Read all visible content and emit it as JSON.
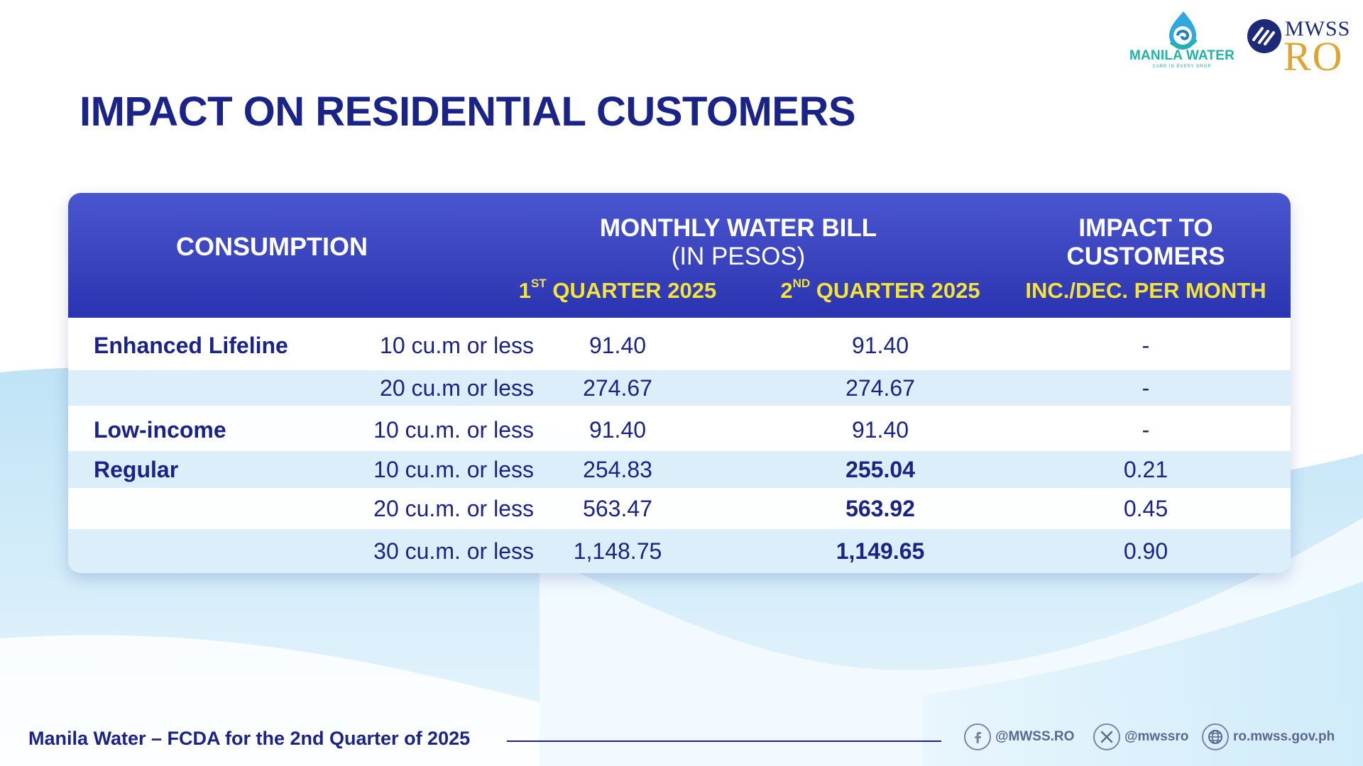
{
  "title": "IMPACT ON RESIDENTIAL CUSTOMERS",
  "logos": {
    "manila_water": "MANILA WATER",
    "manila_water_tagline": "CARE IN EVERY DROP",
    "mwss": "MWSS",
    "ro": "RO"
  },
  "table": {
    "header": {
      "consumption": "CONSUMPTION",
      "bill_line1": "MONTHLY WATER BILL",
      "bill_line2": "(IN PESOS)",
      "impact_line1": "IMPACT TO",
      "impact_line2": "CUSTOMERS",
      "q1_num": "1",
      "q1_sup": "ST",
      "q1_rest": " QUARTER 2025",
      "q2_num": "2",
      "q2_sup": "ND",
      "q2_rest": " QUARTER 2025",
      "inc_dec": "INC./DEC. PER MONTH"
    },
    "rows": [
      {
        "category": "Enhanced Lifeline",
        "size": "10 cu.m or less",
        "q1": "91.40",
        "q2": "91.40",
        "impact": "-"
      },
      {
        "category": "",
        "size": "20 cu.m or less",
        "q1": "274.67",
        "q2": "274.67",
        "impact": "-"
      },
      {
        "category": "Low-income",
        "size": "10 cu.m. or less",
        "q1": "91.40",
        "q2": "91.40",
        "impact": "-"
      },
      {
        "category": "Regular",
        "size": "10 cu.m. or less",
        "q1": "254.83",
        "q2": "255.04",
        "impact": "0.21"
      },
      {
        "category": "",
        "size": "20 cu.m. or less",
        "q1": "563.47",
        "q2": "563.92",
        "impact": "0.45"
      },
      {
        "category": "",
        "size": "30 cu.m. or less",
        "q1": "1,148.75",
        "q2": "1,149.65",
        "impact": "0.90"
      }
    ]
  },
  "footer": {
    "text": "Manila Water – FCDA for the 2nd Quarter of 2025",
    "facebook": "@MWSS.RO",
    "x_handle": "@mwssro",
    "website": "ro.mwss.gov.ph"
  },
  "icons": {
    "facebook": "facebook-icon",
    "x": "x-icon",
    "globe": "globe-icon"
  }
}
